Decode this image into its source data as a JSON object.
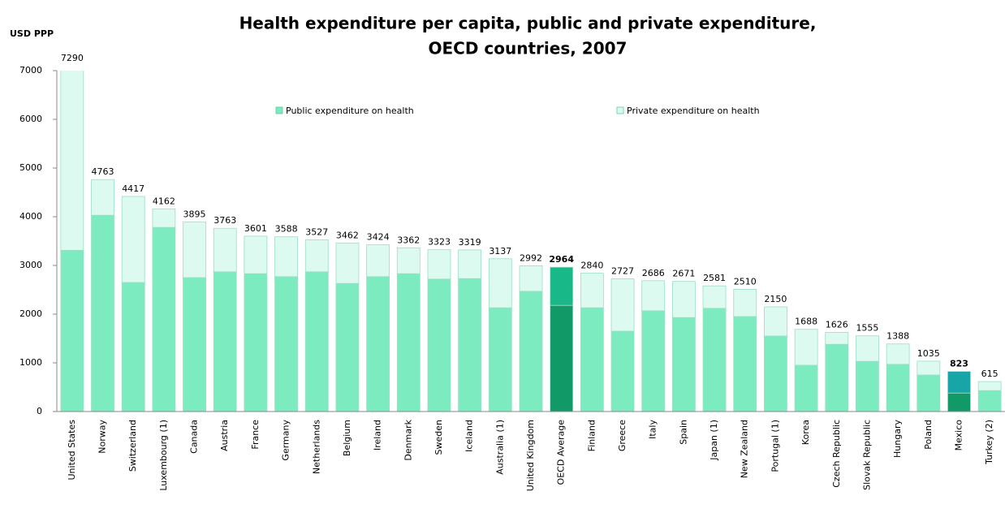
{
  "chart_data": {
    "type": "stacked_bar",
    "title": [
      "Health expenditure per capita, public and private expenditure,",
      "OECD countries, 2007"
    ],
    "y_label": "USD PPP",
    "categories": [
      "United States",
      "Norway",
      "Switzerland",
      "Luxembourg (1)",
      "Canada",
      "Austria",
      "France",
      "Germany",
      "Netherlands",
      "Belgium",
      "Ireland",
      "Denmark",
      "Sweden",
      "Iceland",
      "Australia (1)",
      "United Kingdom",
      "OECD Average",
      "Finland",
      "Greece",
      "Italy",
      "Spain",
      "Japan (1)",
      "New Zealand",
      "Portugal (1)",
      "Korea",
      "Czech Republic",
      "Slovak Republic",
      "Hungary",
      "Poland",
      "Mexico",
      "Turkey (2)"
    ],
    "series": [
      {
        "name": "Public expenditure on health",
        "color": "#7debc0",
        "point_colors": {
          "16": "#119a68",
          "29": "#119a68"
        },
        "values": [
          3310,
          4030,
          2650,
          3780,
          2750,
          2870,
          2830,
          2770,
          2870,
          2630,
          2770,
          2830,
          2720,
          2730,
          2130,
          2470,
          2180,
          2130,
          1650,
          2070,
          1930,
          2120,
          1950,
          1550,
          950,
          1380,
          1030,
          970,
          750,
          380,
          430
        ]
      },
      {
        "name": "Private expenditure on health",
        "color": "#dcfaf0",
        "point_colors": {
          "16": "#19b888",
          "29": "#17a5a8"
        },
        "values": [
          3980,
          733,
          1767,
          382,
          1145,
          893,
          771,
          818,
          657,
          832,
          654,
          532,
          603,
          589,
          1007,
          522,
          784,
          710,
          1077,
          616,
          741,
          461,
          560,
          600,
          738,
          246,
          525,
          418,
          285,
          443,
          185
        ]
      }
    ],
    "totals": [
      7290,
      4763,
      4417,
      4162,
      3895,
      3763,
      3601,
      3588,
      3527,
      3462,
      3424,
      3362,
      3323,
      3319,
      3137,
      2992,
      2964,
      2840,
      2727,
      2686,
      2671,
      2581,
      2510,
      2150,
      1688,
      1626,
      1555,
      1388,
      1035,
      823,
      615
    ],
    "ylim": [
      0,
      7000
    ],
    "yticks": [
      0,
      1000,
      2000,
      3000,
      4000,
      5000,
      6000,
      7000
    ],
    "grid": false
  }
}
